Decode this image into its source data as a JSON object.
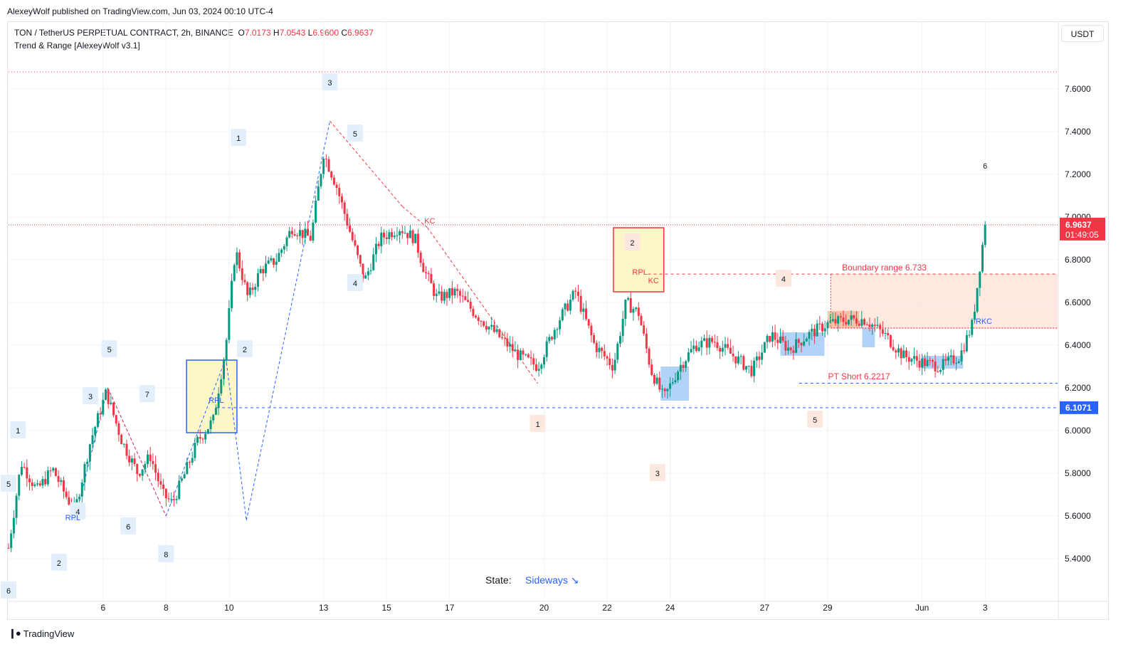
{
  "header": {
    "published_by": "AlexeyWolf published on TradingView.com, Jun 03, 2024 00:10 UTC-4"
  },
  "legend": {
    "symbol": "TON / TetherUS PERPETUAL CONTRACT, 2h, BINANCE",
    "open_label": "O",
    "open": "7.0173",
    "high_label": "H",
    "high": "7.0543",
    "low_label": "L",
    "low": "6.9600",
    "close_label": "C",
    "close": "6.9637",
    "indicator": "Trend & Range [AlexeyWolf v3.1]"
  },
  "currency_button": "USDT",
  "footer": {
    "brand": "TradingView"
  },
  "colors": {
    "up": "#089981",
    "down": "#f23645",
    "blue": "#2962ff",
    "range_fill": "#fde2d6",
    "yellow_fill": "#fdf6c9"
  },
  "chart_data": {
    "type": "candlestick",
    "ylim": [
      5.2,
      7.75
    ],
    "y_ticks": [
      "7.6000",
      "7.4000",
      "7.2000",
      "7.0000",
      "6.8000",
      "6.6000",
      "6.4000",
      "6.2000",
      "6.0000",
      "5.8000",
      "5.6000",
      "5.4000"
    ],
    "y_tick_values": [
      7.6,
      7.4,
      7.2,
      7.0,
      6.8,
      6.6,
      6.4,
      6.2,
      6.0,
      5.8,
      5.6,
      5.4
    ],
    "x_ticks": [
      "6",
      "8",
      "10",
      "13",
      "15",
      "17",
      "20",
      "22",
      "24",
      "27",
      "29",
      "Jun",
      "3"
    ],
    "x_tick_days": [
      6,
      8,
      10,
      13,
      15,
      17,
      20,
      22,
      24,
      27,
      29,
      32,
      34
    ],
    "x_range_days": [
      3.0,
      36.3
    ],
    "price_path": [
      [
        3.0,
        5.45
      ],
      [
        3.4,
        5.85
      ],
      [
        3.9,
        5.72
      ],
      [
        4.4,
        5.82
      ],
      [
        4.8,
        5.7
      ],
      [
        5.1,
        5.62
      ],
      [
        5.6,
        5.95
      ],
      [
        6.1,
        6.18
      ],
      [
        6.6,
        5.95
      ],
      [
        7.1,
        5.8
      ],
      [
        7.5,
        5.88
      ],
      [
        7.9,
        5.7
      ],
      [
        8.2,
        5.66
      ],
      [
        8.6,
        5.8
      ],
      [
        9.0,
        5.95
      ],
      [
        9.5,
        6.05
      ],
      [
        9.9,
        6.4
      ],
      [
        10.2,
        6.85
      ],
      [
        10.6,
        6.62
      ],
      [
        11.0,
        6.75
      ],
      [
        11.5,
        6.8
      ],
      [
        12.0,
        6.95
      ],
      [
        12.6,
        6.9
      ],
      [
        13.0,
        7.3
      ],
      [
        13.4,
        7.15
      ],
      [
        13.8,
        6.95
      ],
      [
        14.3,
        6.7
      ],
      [
        14.8,
        6.9
      ],
      [
        15.4,
        6.95
      ],
      [
        15.9,
        6.9
      ],
      [
        16.2,
        6.75
      ],
      [
        16.6,
        6.62
      ],
      [
        17.2,
        6.65
      ],
      [
        17.8,
        6.55
      ],
      [
        18.5,
        6.45
      ],
      [
        19.2,
        6.35
      ],
      [
        19.8,
        6.3
      ],
      [
        20.4,
        6.5
      ],
      [
        21.0,
        6.65
      ],
      [
        21.6,
        6.4
      ],
      [
        22.2,
        6.3
      ],
      [
        22.6,
        6.6
      ],
      [
        23.0,
        6.55
      ],
      [
        23.4,
        6.28
      ],
      [
        23.8,
        6.15
      ],
      [
        24.3,
        6.3
      ],
      [
        24.8,
        6.4
      ],
      [
        25.4,
        6.42
      ],
      [
        26.0,
        6.35
      ],
      [
        26.6,
        6.28
      ],
      [
        27.2,
        6.45
      ],
      [
        27.8,
        6.38
      ],
      [
        28.4,
        6.45
      ],
      [
        29.0,
        6.5
      ],
      [
        29.6,
        6.52
      ],
      [
        30.2,
        6.52
      ],
      [
        30.8,
        6.45
      ],
      [
        31.4,
        6.35
      ],
      [
        32.0,
        6.32
      ],
      [
        32.6,
        6.3
      ],
      [
        33.2,
        6.35
      ],
      [
        33.6,
        6.5
      ],
      [
        33.9,
        6.85
      ],
      [
        34.0,
        6.96
      ]
    ],
    "last_price_label": "6.9637",
    "countdown_label": "01:49:05",
    "blue_level_label": "6.1071",
    "blue_level_value": 6.1071,
    "top_dotted_level": 7.68,
    "current_level": 6.9637,
    "boundary_label": "Boundary range 6.733",
    "boundary_value": 6.733,
    "range_low_value": 6.48,
    "pt_short_label": "PT Short 6.2217",
    "pt_short_value": 6.2217,
    "state_label": "State:",
    "state_value": "Sideways ↘",
    "text_labels": {
      "rpl": "RPL",
      "kc": "KC",
      "rkc": "RKC"
    },
    "wave_markers": [
      {
        "t": "6",
        "d": 3.0,
        "v": 5.25,
        "c": "blue"
      },
      {
        "t": "5",
        "d": 3.0,
        "v": 5.75,
        "c": "blue"
      },
      {
        "t": "1",
        "d": 3.3,
        "v": 6.0,
        "c": "blue"
      },
      {
        "t": "2",
        "d": 4.6,
        "v": 5.38,
        "c": "blue"
      },
      {
        "t": "4",
        "d": 5.2,
        "v": 5.62,
        "c": "blue"
      },
      {
        "t": "3",
        "d": 5.6,
        "v": 6.16,
        "c": "blue"
      },
      {
        "t": "5",
        "d": 6.2,
        "v": 6.38,
        "c": "blue"
      },
      {
        "t": "6",
        "d": 6.8,
        "v": 5.55,
        "c": "blue"
      },
      {
        "t": "7",
        "d": 7.4,
        "v": 6.17,
        "c": "blue"
      },
      {
        "t": "8",
        "d": 8.0,
        "v": 5.42,
        "c": "blue"
      },
      {
        "t": "2",
        "d": 10.5,
        "v": 6.38,
        "c": "blue"
      },
      {
        "t": "1",
        "d": 10.3,
        "v": 7.37,
        "c": "blue"
      },
      {
        "t": "3",
        "d": 13.2,
        "v": 7.63,
        "c": "blue"
      },
      {
        "t": "5",
        "d": 14.0,
        "v": 7.39,
        "c": "blue"
      },
      {
        "t": "4",
        "d": 14.0,
        "v": 6.69,
        "c": "blue"
      },
      {
        "t": "1",
        "d": 19.8,
        "v": 6.03,
        "c": "red"
      },
      {
        "t": "2",
        "d": 22.8,
        "v": 6.88,
        "c": "red"
      },
      {
        "t": "3",
        "d": 23.6,
        "v": 5.8,
        "c": "red"
      },
      {
        "t": "4",
        "d": 27.6,
        "v": 6.71,
        "c": "red"
      },
      {
        "t": "5",
        "d": 28.6,
        "v": 6.05,
        "c": "red"
      },
      {
        "t": "6",
        "d": 34.0,
        "v": 7.24,
        "c": "plain"
      }
    ]
  }
}
